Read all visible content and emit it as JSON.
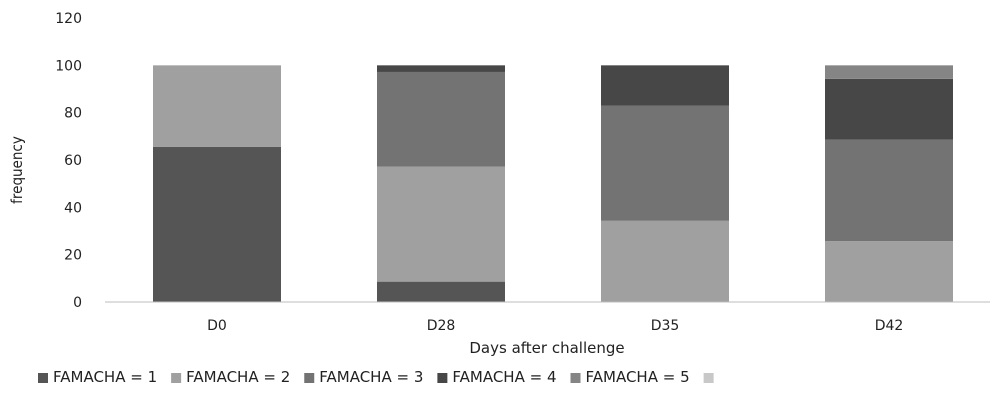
{
  "chart_data": {
    "type": "bar",
    "stacked": true,
    "categories": [
      "D0",
      "D28",
      "D35",
      "D42"
    ],
    "xlabel": "Days after challenge",
    "ylabel": "frequency",
    "ylim": [
      0,
      120
    ],
    "yticks": [
      0,
      20,
      40,
      60,
      80,
      100,
      120
    ],
    "grid": false,
    "legend_position": "bottom",
    "series": [
      {
        "name": "FAMACHA = 1",
        "color": "#555555",
        "values": [
          65.5,
          8.6,
          0,
          0
        ]
      },
      {
        "name": "FAMACHA = 2",
        "color": "#a0a0a0",
        "values": [
          34.5,
          48.6,
          34.3,
          25.7
        ]
      },
      {
        "name": "FAMACHA = 3",
        "color": "#737373",
        "values": [
          0,
          40.0,
          48.6,
          42.9
        ]
      },
      {
        "name": "FAMACHA = 4",
        "color": "#474747",
        "values": [
          0,
          2.8,
          17.1,
          25.7
        ]
      },
      {
        "name": "FAMACHA = 5",
        "color": "#858585",
        "values": [
          0,
          0,
          0,
          5.7
        ]
      }
    ],
    "legend_trailing_swatch_color": "#c8c8c8"
  }
}
